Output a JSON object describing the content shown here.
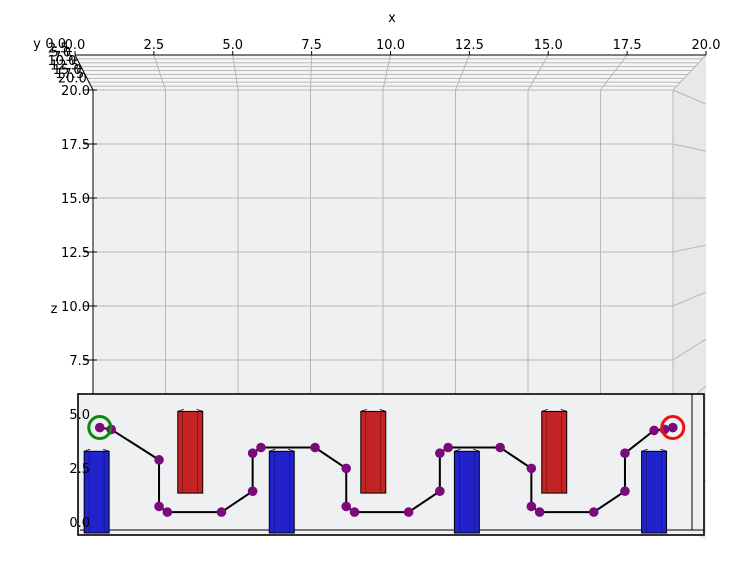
{
  "chart_data": {
    "type": "scatter",
    "projection": "3d",
    "view": "front (x-z plane, looking along y)",
    "xlabel": "x",
    "ylabel": "y",
    "zlabel": "z",
    "xlim": [
      0,
      20
    ],
    "ylim": [
      0,
      20
    ],
    "zlim": [
      0,
      20
    ],
    "x_ticks": [
      "0.0",
      "2.5",
      "5.0",
      "7.5",
      "10.0",
      "12.5",
      "15.0",
      "17.5",
      "20.0"
    ],
    "y_ticks": [
      "0.0",
      "2.5",
      "5.0",
      "7.5",
      "10.0",
      "12.5",
      "15.0",
      "17.5",
      "20.0"
    ],
    "z_ticks": [
      "0.0",
      "2.5",
      "5.0",
      "7.5",
      "10.0",
      "12.5",
      "15.0",
      "17.5",
      "20.0"
    ],
    "grid": true,
    "colors": {
      "pane": "#eef0f2",
      "grid": "#b8b8b8",
      "blue_box": "#2222cc",
      "red_box": "#c42323",
      "path": "#000000",
      "waypoint": "#7b0a7b",
      "start_marker": "#0a8a0a",
      "goal_marker": "#ee1111"
    },
    "obstacles_blue": [
      {
        "x": [
          0.2,
          1.4
        ],
        "z": [
          0,
          4.3
        ]
      },
      {
        "x": [
          9.1,
          10.3
        ],
        "z": [
          0,
          4.3
        ]
      },
      {
        "x": [
          18.0,
          19.2
        ],
        "z": [
          0,
          4.3
        ]
      },
      {
        "x": [
          27.0,
          28.2
        ],
        "z": [
          0,
          4.3
        ]
      }
    ],
    "obstacles_red": [
      {
        "x": [
          4.7,
          5.9
        ],
        "z": [
          2.1,
          6.4
        ]
      },
      {
        "x": [
          13.5,
          14.7
        ],
        "z": [
          2.1,
          6.4
        ]
      },
      {
        "x": [
          22.2,
          23.4
        ],
        "z": [
          2.1,
          6.4
        ]
      }
    ],
    "path_points": [
      {
        "x": 0.95,
        "z": 5.55
      },
      {
        "x": 1.5,
        "z": 5.45
      },
      {
        "x": 3.8,
        "z": 3.85
      },
      {
        "x": 3.8,
        "z": 1.4
      },
      {
        "x": 4.2,
        "z": 1.1
      },
      {
        "x": 6.8,
        "z": 1.1
      },
      {
        "x": 8.3,
        "z": 2.2
      },
      {
        "x": 8.3,
        "z": 4.2
      },
      {
        "x": 8.7,
        "z": 4.5
      },
      {
        "x": 11.3,
        "z": 4.5
      },
      {
        "x": 12.8,
        "z": 3.4
      },
      {
        "x": 12.8,
        "z": 1.4
      },
      {
        "x": 13.2,
        "z": 1.1
      },
      {
        "x": 15.8,
        "z": 1.1
      },
      {
        "x": 17.3,
        "z": 2.2
      },
      {
        "x": 17.3,
        "z": 4.2
      },
      {
        "x": 17.7,
        "z": 4.5
      },
      {
        "x": 20.2,
        "z": 4.5
      },
      {
        "x": 21.7,
        "z": 3.4
      },
      {
        "x": 21.7,
        "z": 1.4
      },
      {
        "x": 22.1,
        "z": 1.1
      },
      {
        "x": 24.7,
        "z": 1.1
      },
      {
        "x": 26.2,
        "z": 2.2
      },
      {
        "x": 26.2,
        "z": 4.2
      },
      {
        "x": 27.6,
        "z": 5.4
      },
      {
        "x": 28.1,
        "z": 5.45
      },
      {
        "x": 28.5,
        "z": 5.55
      }
    ],
    "start": {
      "x": 0.95,
      "z": 5.55
    },
    "goal": {
      "x": 28.5,
      "z": 5.55
    }
  }
}
